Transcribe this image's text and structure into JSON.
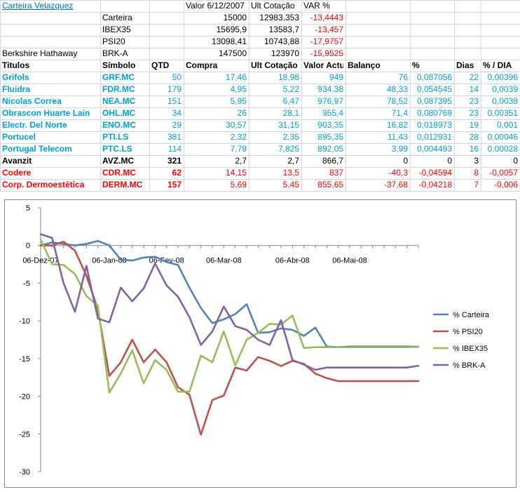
{
  "summary": {
    "title": "Carteira Velazquez",
    "headers": [
      "Valor 6/12/2007",
      "Ult Cotação",
      "VAR %"
    ],
    "rows": [
      {
        "label": "",
        "name": "Carteira",
        "v1": "15000",
        "v2": "12983,353",
        "v3": "-13,4443"
      },
      {
        "label": "",
        "name": "IBEX35",
        "v1": "15695,9",
        "v2": "13583,7",
        "v3": "-13,457"
      },
      {
        "label": "",
        "name": "PSI20",
        "v1": "13098,41",
        "v2": "10743,88",
        "v3": "-17,9757"
      },
      {
        "label": "Berkshire Hathaway",
        "name": "BRK-A",
        "v1": "147500",
        "v2": "123970",
        "v3": "-15,9525"
      }
    ]
  },
  "table": {
    "headers": [
      "Titulos",
      "Símbolo",
      "QTD",
      "Compra",
      "Ult Cotação",
      "Valor Actual",
      "Balanço",
      "%",
      "Dias",
      "% / DIA"
    ],
    "rows": [
      {
        "style": "blue",
        "cells": [
          "Grifols",
          "GRF.MC",
          "50",
          "17,46",
          "18,98",
          "949",
          "76",
          "0,087056",
          "22",
          "0,00396"
        ]
      },
      {
        "style": "blue",
        "cells": [
          "Fluidra",
          "FDR.MC",
          "179",
          "4,95",
          "5,22",
          "934,38",
          "48,33",
          "0,054545",
          "14",
          "0,0039"
        ]
      },
      {
        "style": "blue",
        "cells": [
          "Nicolas Correa",
          "NEA.MC",
          "151",
          "5,95",
          "6,47",
          "976,97",
          "78,52",
          "0,087395",
          "23",
          "0,0038"
        ]
      },
      {
        "style": "blue",
        "cells": [
          "Obrascon Huarte Lain",
          "OHL.MC",
          "34",
          "26",
          "28,1",
          "955,4",
          "71,4",
          "0,080769",
          "23",
          "0,00351"
        ]
      },
      {
        "style": "blue",
        "cells": [
          "Electr. Del Norte",
          "ENO.MC",
          "29",
          "30,57",
          "31,15",
          "903,35",
          "16,82",
          "0,018973",
          "19",
          "0,001"
        ]
      },
      {
        "style": "blue",
        "cells": [
          "Portucel",
          "PTI.LS",
          "381",
          "2,32",
          "2,35",
          "895,35",
          "11,43",
          "0,012931",
          "28",
          "0,00046"
        ]
      },
      {
        "style": "blue",
        "cells": [
          "Portugal Telecom",
          "PTC.LS",
          "114",
          "7,79",
          "7,825",
          "892,05",
          "3,99",
          "0,004493",
          "16",
          "0,00028"
        ]
      },
      {
        "style": "bold",
        "cells": [
          "Avanzit",
          "AVZ.MC",
          "321",
          "2,7",
          "2,7",
          "866,7",
          "0",
          "0",
          "3",
          "0"
        ]
      },
      {
        "style": "red",
        "cells": [
          "Codere",
          "CDR.MC",
          "62",
          "14,15",
          "13,5",
          "837",
          "-40,3",
          "-0,04594",
          "8",
          "-0,0057"
        ]
      },
      {
        "style": "red",
        "cells": [
          "Corp. Dermoestética",
          "DERM.MC",
          "157",
          "5,69",
          "5,45",
          "855,65",
          "-37,68",
          "-0,04218",
          "7",
          "-0,006"
        ]
      }
    ]
  },
  "chart_data": {
    "type": "line",
    "ylim": [
      -30,
      5
    ],
    "yticks": [
      5,
      0,
      -5,
      -10,
      -15,
      -20,
      -25,
      -30
    ],
    "xtick_labels": [
      "06-Dez-07",
      "06-Jan-08",
      "06-Fev-08",
      "06-Mar-08",
      "06-Abr-08",
      "06-Mai-08"
    ],
    "xtick_index": [
      0,
      6,
      11,
      16,
      22,
      27
    ],
    "n_points": 34,
    "legend_position": "right",
    "series": [
      {
        "name": "% Carteira",
        "color": "#4f81bd",
        "values": [
          0,
          0.4,
          0.2,
          0,
          0.2,
          0.6,
          0,
          -1.9,
          -2,
          -1.6,
          -1.5,
          -2.2,
          -2.6,
          -5.6,
          -8.3,
          -10.3,
          -9.8,
          -9.1,
          -7.8,
          -11.6,
          -11.5,
          -11,
          -11.2,
          -12,
          -10.9,
          -13.4,
          -13.5,
          -13.4,
          -13.4,
          -13.4,
          -13.4,
          -13.4,
          -13.4,
          -13.44
        ]
      },
      {
        "name": "% PSI20",
        "color": "#c0504d",
        "values": [
          0,
          0,
          0.5,
          -0.7,
          -4,
          -8.5,
          -17.3,
          -15.5,
          -12.5,
          -15.5,
          -13.8,
          -15.5,
          -18.8,
          -19.8,
          -25.1,
          -20.5,
          -19.9,
          -16.2,
          -16.6,
          -14.8,
          -15.3,
          -16,
          -15.3,
          -15.7,
          -17,
          -17.6,
          -18,
          -18,
          -18,
          -18,
          -18,
          -18,
          -18,
          -17.98
        ]
      },
      {
        "name": "% IBEX35",
        "color": "#9bbb59",
        "values": [
          0.8,
          -2.5,
          -2.6,
          -3.8,
          -6.7,
          -8,
          -19.5,
          -17,
          -13.9,
          -18.3,
          -15.2,
          -16.5,
          -19.4,
          -19.4,
          -14.6,
          -15.5,
          -11.4,
          -15.9,
          -12.5,
          -11.6,
          -10.4,
          -10.5,
          -9.3,
          -13.6,
          -13.5,
          -13.5,
          -13.5,
          -13.5,
          -13.5,
          -13.5,
          -13.5,
          -13.5,
          -13.5,
          -13.46
        ]
      },
      {
        "name": "% BRK-A",
        "color": "#8064a2",
        "values": [
          1.5,
          1,
          -5,
          -8.8,
          -2.7,
          -9.7,
          -10.2,
          -5.6,
          -7.4,
          -5.7,
          -2.4,
          -5.3,
          -6.8,
          -9.5,
          -13.2,
          -11.4,
          -8.1,
          -10.7,
          -11.2,
          -12.5,
          -13.2,
          -9.9,
          -15.2,
          -15.8,
          -16.5,
          -16.2,
          -16.2,
          -16.2,
          -16.2,
          -16.2,
          -16.2,
          -16.2,
          -16.2,
          -15.95
        ]
      }
    ]
  }
}
